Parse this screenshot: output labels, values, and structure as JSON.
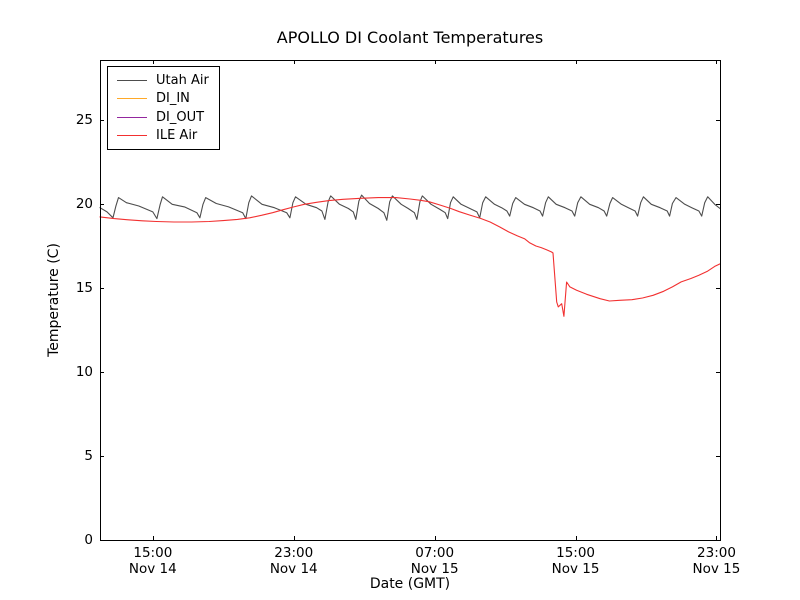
{
  "figure": {
    "background": "#ffffff",
    "axes_color": "#000000"
  },
  "chart_data": {
    "type": "line",
    "title": "APOLLO DI Coolant Temperatures",
    "xlabel": "Date (GMT)",
    "ylabel": "Temperature (C)",
    "grid": false,
    "legend_position": "upper left",
    "x_axis_note": "x values are hours after Nov 14 12:00 GMT",
    "xlim": [
      0,
      35.2
    ],
    "ylim": [
      0,
      28.6
    ],
    "y_ticks": [
      0,
      5,
      10,
      15,
      20,
      25
    ],
    "x_ticks": [
      {
        "t": 3,
        "time": "15:00",
        "date": "Nov 14"
      },
      {
        "t": 11,
        "time": "23:00",
        "date": "Nov 14"
      },
      {
        "t": 19,
        "time": "07:00",
        "date": "Nov 15"
      },
      {
        "t": 27,
        "time": "15:00",
        "date": "Nov 15"
      },
      {
        "t": 35,
        "time": "23:00",
        "date": "Nov 15"
      }
    ],
    "series": [
      {
        "name": "Utah Air",
        "color": "#4d4d4d",
        "points": [
          [
            0,
            19.8
          ],
          [
            0.4,
            19.55
          ],
          [
            0.74,
            19.2
          ],
          [
            0.9,
            19.9
          ],
          [
            1.05,
            20.4
          ],
          [
            1.5,
            20.1
          ],
          [
            2.2,
            19.9
          ],
          [
            3.0,
            19.55
          ],
          [
            3.23,
            19.15
          ],
          [
            3.42,
            20.0
          ],
          [
            3.55,
            20.45
          ],
          [
            4.1,
            20.0
          ],
          [
            4.8,
            19.85
          ],
          [
            5.5,
            19.5
          ],
          [
            5.67,
            19.2
          ],
          [
            5.85,
            20.0
          ],
          [
            6.0,
            20.4
          ],
          [
            6.6,
            20.05
          ],
          [
            7.3,
            19.85
          ],
          [
            8.1,
            19.5
          ],
          [
            8.28,
            19.15
          ],
          [
            8.45,
            20.1
          ],
          [
            8.6,
            20.5
          ],
          [
            9.2,
            20.0
          ],
          [
            9.9,
            19.8
          ],
          [
            10.6,
            19.5
          ],
          [
            10.78,
            19.2
          ],
          [
            10.95,
            20.1
          ],
          [
            11.1,
            20.45
          ],
          [
            11.7,
            20.0
          ],
          [
            12.3,
            19.8
          ],
          [
            12.6,
            19.6
          ],
          [
            12.77,
            19.1
          ],
          [
            12.95,
            20.15
          ],
          [
            13.1,
            20.5
          ],
          [
            13.6,
            20.0
          ],
          [
            14.1,
            19.75
          ],
          [
            14.38,
            19.55
          ],
          [
            14.52,
            19.1
          ],
          [
            14.7,
            20.2
          ],
          [
            14.85,
            20.55
          ],
          [
            15.3,
            20.05
          ],
          [
            15.8,
            19.75
          ],
          [
            16.12,
            19.5
          ],
          [
            16.28,
            19.05
          ],
          [
            16.45,
            20.15
          ],
          [
            16.6,
            20.5
          ],
          [
            17.1,
            20.0
          ],
          [
            17.5,
            19.75
          ],
          [
            17.85,
            19.5
          ],
          [
            17.99,
            19.1
          ],
          [
            18.16,
            20.15
          ],
          [
            18.3,
            20.5
          ],
          [
            18.8,
            20.0
          ],
          [
            19.3,
            19.7
          ],
          [
            19.6,
            19.5
          ],
          [
            19.74,
            19.15
          ],
          [
            19.9,
            20.1
          ],
          [
            20.05,
            20.45
          ],
          [
            20.5,
            20.0
          ],
          [
            21.0,
            19.75
          ],
          [
            21.4,
            19.55
          ],
          [
            21.56,
            19.2
          ],
          [
            21.73,
            20.1
          ],
          [
            21.9,
            20.45
          ],
          [
            22.4,
            20.0
          ],
          [
            22.8,
            19.8
          ],
          [
            23.1,
            19.6
          ],
          [
            23.26,
            19.3
          ],
          [
            23.43,
            20.05
          ],
          [
            23.6,
            20.4
          ],
          [
            24.1,
            20.0
          ],
          [
            24.6,
            19.8
          ],
          [
            24.98,
            19.6
          ],
          [
            25.13,
            19.3
          ],
          [
            25.3,
            20.1
          ],
          [
            25.45,
            20.45
          ],
          [
            25.9,
            20.0
          ],
          [
            26.4,
            19.8
          ],
          [
            26.8,
            19.6
          ],
          [
            26.95,
            19.3
          ],
          [
            27.12,
            20.1
          ],
          [
            27.3,
            20.45
          ],
          [
            27.8,
            20.0
          ],
          [
            28.3,
            19.8
          ],
          [
            28.62,
            19.6
          ],
          [
            28.77,
            19.3
          ],
          [
            28.95,
            20.05
          ],
          [
            29.1,
            20.4
          ],
          [
            29.6,
            20.0
          ],
          [
            30.0,
            19.8
          ],
          [
            30.38,
            19.6
          ],
          [
            30.52,
            19.3
          ],
          [
            30.7,
            20.1
          ],
          [
            30.85,
            20.45
          ],
          [
            31.3,
            20.0
          ],
          [
            31.8,
            19.8
          ],
          [
            32.2,
            19.6
          ],
          [
            32.34,
            19.3
          ],
          [
            32.5,
            20.05
          ],
          [
            32.7,
            20.4
          ],
          [
            33.2,
            20.0
          ],
          [
            33.6,
            19.8
          ],
          [
            34.0,
            19.6
          ],
          [
            34.16,
            19.3
          ],
          [
            34.33,
            20.1
          ],
          [
            34.5,
            20.45
          ],
          [
            34.9,
            20.0
          ],
          [
            35.2,
            19.75
          ]
        ]
      },
      {
        "name": "DI_IN",
        "color": "#ffa928",
        "points": []
      },
      {
        "name": "DI_OUT",
        "color": "#93279e",
        "points": []
      },
      {
        "name": "ILE Air",
        "color": "#f23030",
        "points": [
          [
            0,
            19.25
          ],
          [
            0.8,
            19.15
          ],
          [
            1.6,
            19.08
          ],
          [
            2.4,
            19.02
          ],
          [
            3.2,
            18.98
          ],
          [
            4.2,
            18.95
          ],
          [
            5.2,
            18.95
          ],
          [
            6.2,
            18.98
          ],
          [
            7.0,
            19.03
          ],
          [
            7.8,
            19.1
          ],
          [
            8.5,
            19.2
          ],
          [
            9.2,
            19.35
          ],
          [
            9.8,
            19.5
          ],
          [
            10.4,
            19.68
          ],
          [
            11.0,
            19.85
          ],
          [
            11.6,
            20.0
          ],
          [
            12.3,
            20.12
          ],
          [
            13.0,
            20.22
          ],
          [
            13.8,
            20.3
          ],
          [
            14.8,
            20.36
          ],
          [
            15.8,
            20.4
          ],
          [
            16.8,
            20.4
          ],
          [
            17.6,
            20.32
          ],
          [
            18.2,
            20.24
          ],
          [
            18.7,
            20.15
          ],
          [
            19.3,
            19.96
          ],
          [
            19.9,
            19.76
          ],
          [
            20.4,
            19.56
          ],
          [
            21.0,
            19.36
          ],
          [
            21.6,
            19.16
          ],
          [
            22.15,
            18.95
          ],
          [
            22.7,
            18.65
          ],
          [
            23.2,
            18.36
          ],
          [
            23.7,
            18.12
          ],
          [
            24.1,
            17.95
          ],
          [
            24.4,
            17.7
          ],
          [
            24.75,
            17.52
          ],
          [
            25.05,
            17.42
          ],
          [
            25.35,
            17.3
          ],
          [
            25.64,
            17.16
          ],
          [
            25.72,
            17.1
          ],
          [
            25.93,
            14.18
          ],
          [
            26.02,
            13.89
          ],
          [
            26.21,
            14.08
          ],
          [
            26.34,
            13.33
          ],
          [
            26.49,
            15.37
          ],
          [
            26.68,
            15.08
          ],
          [
            27.06,
            14.88
          ],
          [
            27.63,
            14.64
          ],
          [
            28.39,
            14.38
          ],
          [
            28.92,
            14.24
          ],
          [
            29.5,
            14.28
          ],
          [
            30.2,
            14.32
          ],
          [
            30.8,
            14.42
          ],
          [
            31.4,
            14.58
          ],
          [
            32.0,
            14.82
          ],
          [
            32.5,
            15.08
          ],
          [
            33.0,
            15.38
          ],
          [
            33.55,
            15.58
          ],
          [
            34.0,
            15.78
          ],
          [
            34.5,
            16.02
          ],
          [
            34.9,
            16.3
          ],
          [
            35.2,
            16.45
          ]
        ]
      }
    ]
  }
}
